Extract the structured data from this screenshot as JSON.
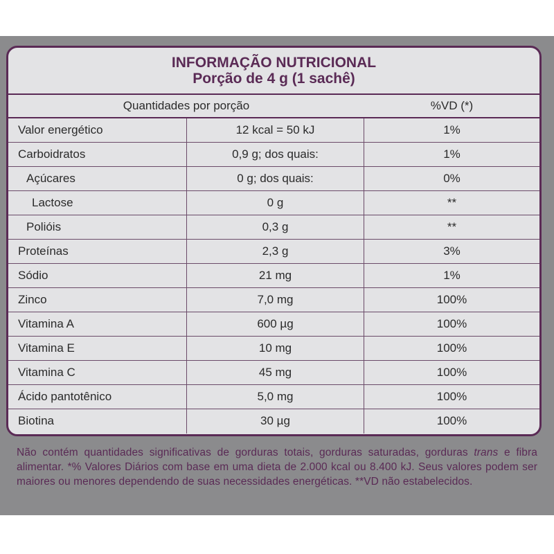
{
  "header": {
    "title": "INFORMAÇÃO NUTRICIONAL",
    "subtitle": "Porção de 4 g (1 sachê)"
  },
  "columns": {
    "quantity": "Quantidades por porção",
    "vd": "%VD (*)"
  },
  "rows": [
    {
      "name": "Valor energético",
      "qty": "12 kcal = 50 kJ",
      "vd": "1%",
      "indent": 0
    },
    {
      "name": "Carboidratos",
      "qty": "0,9 g; dos quais:",
      "vd": "1%",
      "indent": 0
    },
    {
      "name": "Açúcares",
      "qty": "0 g; dos quais:",
      "vd": "0%",
      "indent": 1
    },
    {
      "name": "Lactose",
      "qty": "0 g",
      "vd": "**",
      "indent": 2
    },
    {
      "name": "Polióis",
      "qty": "0,3 g",
      "vd": "**",
      "indent": 1
    },
    {
      "name": "Proteínas",
      "qty": "2,3 g",
      "vd": "3%",
      "indent": 0
    },
    {
      "name": "Sódio",
      "qty": "21 mg",
      "vd": "1%",
      "indent": 0
    },
    {
      "name": "Zinco",
      "qty": "7,0 mg",
      "vd": "100%",
      "indent": 0
    },
    {
      "name": "Vitamina A",
      "qty": "600 µg",
      "vd": "100%",
      "indent": 0
    },
    {
      "name": "Vitamina E",
      "qty": "10 mg",
      "vd": "100%",
      "indent": 0
    },
    {
      "name": "Vitamina C",
      "qty": "45 mg",
      "vd": "100%",
      "indent": 0
    },
    {
      "name": "Ácido pantotênico",
      "qty": "5,0 mg",
      "vd": "100%",
      "indent": 0
    },
    {
      "name": "Biotina",
      "qty": "30 µg",
      "vd": "100%",
      "indent": 0
    }
  ],
  "footnote": {
    "part1": "Não contém quantidades significativas de gorduras totais, gorduras saturadas, gorduras ",
    "italic": "trans",
    "part2": " e fibra alimentar. *% Valores Diários com base em uma dieta de 2.000 kcal ou 8.400 kJ. Seus valores podem ser maiores ou menores dependendo de suas necessidades energéticas. **VD não estabelecidos."
  },
  "colors": {
    "accent": "#5a2a55",
    "panel": "#8b8b8d",
    "card": "#e3e3e5"
  }
}
